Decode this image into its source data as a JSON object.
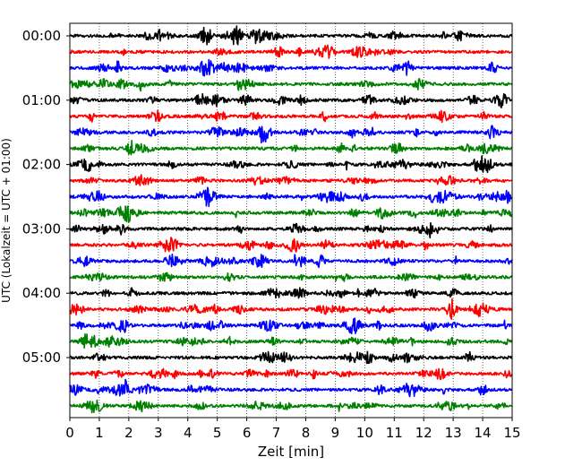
{
  "chart_data": {
    "type": "line",
    "xlabel": "Zeit  [min]",
    "ylabel": "UTC (Lokalzeit = UTC + 01:00)",
    "xlim": [
      0,
      15
    ],
    "x_ticks": [
      0,
      1,
      2,
      3,
      4,
      5,
      6,
      7,
      8,
      9,
      10,
      11,
      12,
      13,
      14,
      15
    ],
    "x_tick_labels": [
      "0",
      "1",
      "2",
      "3",
      "4",
      "5",
      "6",
      "7",
      "8",
      "9",
      "10",
      "11",
      "12",
      "13",
      "14",
      "15"
    ],
    "y_tick_labels": [
      "00:00",
      "01:00",
      "02:00",
      "03:00",
      "04:00",
      "05:00"
    ],
    "y_tick_traces": [
      0,
      4,
      8,
      12,
      16,
      20
    ],
    "trace_minutes": 15,
    "trace_count": 24,
    "color_cycle": [
      "#000000",
      "#ff0000",
      "#0000ff",
      "#008000"
    ],
    "grid": "vertical dotted lines at each minute",
    "series": [
      {
        "start": "00:00"
      },
      {
        "start": "00:15"
      },
      {
        "start": "00:30"
      },
      {
        "start": "00:45"
      },
      {
        "start": "01:00"
      },
      {
        "start": "01:15"
      },
      {
        "start": "01:30"
      },
      {
        "start": "01:45"
      },
      {
        "start": "02:00"
      },
      {
        "start": "02:15"
      },
      {
        "start": "02:30"
      },
      {
        "start": "02:45"
      },
      {
        "start": "03:00"
      },
      {
        "start": "03:15"
      },
      {
        "start": "03:30"
      },
      {
        "start": "03:45"
      },
      {
        "start": "04:00"
      },
      {
        "start": "04:15"
      },
      {
        "start": "04:30"
      },
      {
        "start": "04:45"
      },
      {
        "start": "05:00"
      },
      {
        "start": "05:15"
      },
      {
        "start": "05:30"
      },
      {
        "start": "05:45"
      }
    ]
  }
}
